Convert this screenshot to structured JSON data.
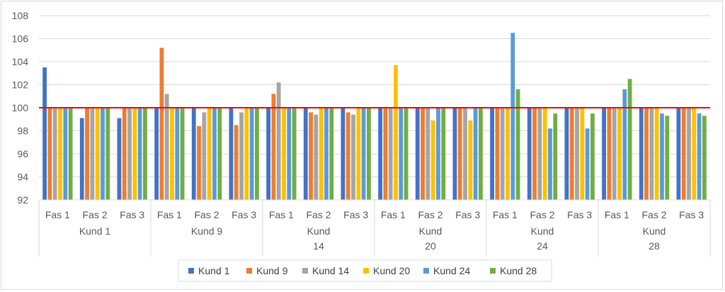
{
  "chart_data": {
    "type": "bar",
    "title": "",
    "xlabel": "",
    "ylabel": "",
    "ylim": [
      92,
      108
    ],
    "yticks": [
      92,
      94,
      96,
      98,
      100,
      102,
      104,
      106,
      108
    ],
    "grid": true,
    "legend_position": "bottom",
    "reference_line": {
      "value": 100,
      "color": "#ff0000"
    },
    "groups": [
      {
        "label": [
          "Kund 1"
        ],
        "phases": [
          "Fas 1",
          "Fas 2",
          "Fas 3"
        ]
      },
      {
        "label": [
          "Kund 9"
        ],
        "phases": [
          "Fas 1",
          "Fas 2",
          "Fas 3"
        ]
      },
      {
        "label": [
          "Kund",
          "14"
        ],
        "phases": [
          "Fas 1",
          "Fas 2",
          "Fas 3"
        ]
      },
      {
        "label": [
          "Kund",
          "20"
        ],
        "phases": [
          "Fas 1",
          "Fas 2",
          "Fas 3"
        ]
      },
      {
        "label": [
          "Kund",
          "24"
        ],
        "phases": [
          "Fas 1",
          "Fas 2",
          "Fas 3"
        ]
      },
      {
        "label": [
          "Kund",
          "28"
        ],
        "phases": [
          "Fas 1",
          "Fas 2",
          "Fas 3"
        ]
      }
    ],
    "series": [
      {
        "name": "Kund 1",
        "color": "#4472c4",
        "values": [
          103.5,
          99.1,
          99.1,
          100,
          100,
          100,
          100,
          100,
          100,
          100,
          100,
          100,
          100,
          100,
          100,
          100,
          100,
          100
        ]
      },
      {
        "name": "Kund 9",
        "color": "#ed7d31",
        "values": [
          100,
          100,
          100,
          105.2,
          98.4,
          98.5,
          101.2,
          99.6,
          99.6,
          100,
          100,
          100,
          100,
          100,
          100,
          100,
          100,
          100
        ]
      },
      {
        "name": "Kund 14",
        "color": "#a5a5a5",
        "values": [
          100,
          100,
          100,
          101.2,
          99.6,
          99.6,
          102.2,
          99.4,
          99.4,
          100,
          100,
          100,
          100,
          100,
          100,
          100,
          100,
          100
        ]
      },
      {
        "name": "Kund 20",
        "color": "#ffc000",
        "values": [
          100,
          100,
          100,
          100,
          100,
          100,
          100,
          100,
          100,
          103.7,
          98.9,
          98.9,
          100,
          100,
          100,
          100,
          100,
          100
        ]
      },
      {
        "name": "Kund 24",
        "color": "#5b9bd5",
        "values": [
          100,
          100,
          100,
          100,
          100,
          100,
          100,
          100,
          100,
          100,
          100,
          100,
          106.5,
          98.2,
          98.2,
          101.6,
          99.5,
          99.5
        ]
      },
      {
        "name": "Kund 28",
        "color": "#70ad47",
        "values": [
          100,
          100,
          100,
          100,
          100,
          100,
          100,
          100,
          100,
          100,
          100,
          100,
          101.6,
          99.5,
          99.5,
          102.5,
          99.3,
          99.3
        ]
      }
    ]
  }
}
